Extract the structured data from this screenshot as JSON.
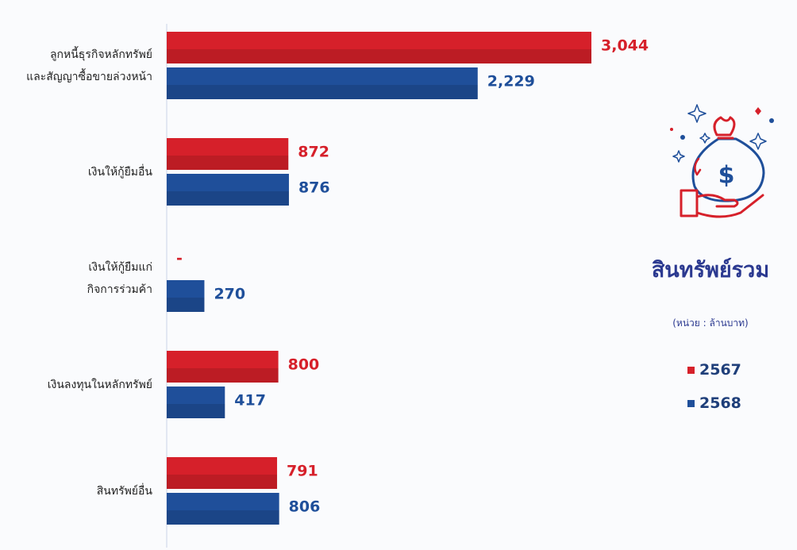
{
  "chart_data": {
    "type": "bar",
    "orientation": "horizontal",
    "title": "สินทรัพย์รวม",
    "subtitle": "(หน่วย : ล้านบาท)",
    "categories": [
      "ลูกหนี้ธุรกิจหลักทรัพย์\nและสัญญาซื้อขายล่วงหน้า",
      "เงินให้กู้ยืมอื่น",
      "เงินให้กู้ยืมแก่\nกิจการร่วมค้า",
      "เงินลงทุนในหลักทรัพย์",
      "สินทรัพย์อื่น"
    ],
    "series": [
      {
        "name": "2567",
        "color": "#d6202a",
        "values": [
          3044,
          872,
          null,
          800,
          791
        ],
        "value_labels": [
          "3,044",
          "872",
          "-",
          "800",
          "791"
        ]
      },
      {
        "name": "2568",
        "color": "#1f4f9a",
        "values": [
          2229,
          876,
          270,
          417,
          806
        ],
        "value_labels": [
          "2,229",
          "876",
          "270",
          "417",
          "806"
        ]
      }
    ]
  }
}
